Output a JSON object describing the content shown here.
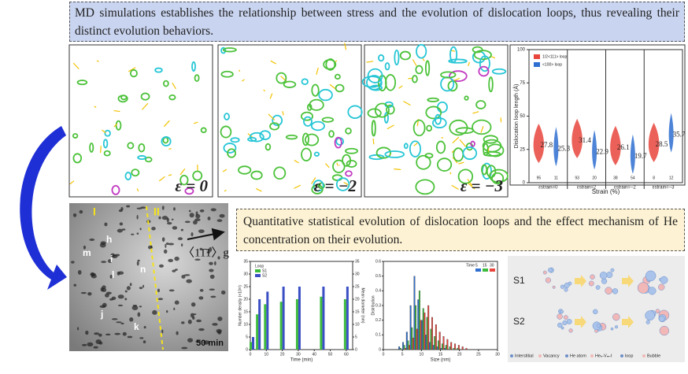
{
  "banner_top": "MD simulations establishes the relationship between stress and the evolution of dislocation loops, thus revealing their distinct evolution behaviors.",
  "md_panels": [
    {
      "label": "ε = 0"
    },
    {
      "label": "ε = −2"
    },
    {
      "label": "ε = −3"
    }
  ],
  "violin_chart": {
    "type": "violin",
    "ylabel": "Dislocation loop length (Å)",
    "xlabel": "Strain (%)",
    "categories": [
      "εstrain=0",
      "εstrain=2",
      "εstrain=−2",
      "εstrain=−3"
    ],
    "ylim": [
      0,
      100
    ],
    "yticks": [
      0,
      25,
      50,
      75,
      100
    ],
    "series": [
      {
        "name": "1/2<111> loop",
        "color": "#e8453c",
        "values": [
          27.8,
          31.4,
          26.1,
          28.5
        ],
        "counts": [
          95,
          93,
          38,
          8
        ]
      },
      {
        "name": "<100> loop",
        "color": "#2f6fd0",
        "values": [
          25.3,
          22.9,
          19.7,
          35.7
        ],
        "counts": [
          11,
          20,
          54,
          12
        ]
      }
    ]
  },
  "banner_mid": "Quantitative statistical evolution of dislocation loops and the effect mechanism of He concentration on their evolution.",
  "tem_image": {
    "regions": [
      "I",
      "II"
    ],
    "loops": [
      "h",
      "m",
      "i",
      "l",
      "n",
      "j",
      "k"
    ],
    "direction": "〈11̄1〉g",
    "caption": "50 min"
  },
  "bar_chart": {
    "type": "bar",
    "xlabel": "Time (min)",
    "ylabel": "Number density (×10²²)",
    "y2label": "Mean diameter (nm)",
    "legend_title": "Loop",
    "x": [
      1,
      5,
      10,
      20,
      30,
      45,
      60
    ],
    "xlim": [
      0,
      64
    ],
    "xticks": [
      0,
      10,
      20,
      30,
      40,
      50,
      60
    ],
    "ylim": [
      0,
      35
    ],
    "yticks": [
      0,
      5,
      10,
      15,
      20,
      25,
      30,
      35
    ],
    "y2lim": [
      0,
      35
    ],
    "y2ticks": [
      0,
      5,
      10,
      15,
      20,
      25,
      30,
      35
    ],
    "series": [
      {
        "name": "S1",
        "color": "#3dbb3d",
        "values": [
          3,
          14,
          18,
          19,
          20,
          21,
          20
        ]
      },
      {
        "name": "S2",
        "color": "#3b4fc4",
        "values": [
          5,
          20,
          23,
          25,
          25,
          25,
          25
        ]
      }
    ]
  },
  "hist_chart": {
    "type": "histogram",
    "xlabel": "Size (nm)",
    "ylabel": "Distribution",
    "legend_title": "Time",
    "bins": [
      4,
      5,
      6,
      7,
      8,
      9,
      10,
      11,
      12,
      13,
      14,
      15,
      16,
      17,
      18,
      19,
      20,
      21,
      22
    ],
    "xlim": [
      0,
      30
    ],
    "xticks": [
      0,
      5,
      10,
      15,
      20,
      25,
      30
    ],
    "ylim": [
      0,
      0.6
    ],
    "yticks": [
      0,
      0.1,
      0.2,
      0.3,
      0.4,
      0.5,
      0.6
    ],
    "series": [
      {
        "name": "5",
        "color": "#2f6fd0",
        "values": [
          0.02,
          0.05,
          0.12,
          0.3,
          0.5,
          0.34,
          0.2,
          0.1,
          0.05,
          0.03,
          0.02,
          0.01,
          0.01,
          0,
          0,
          0,
          0,
          0
        ]
      },
      {
        "name": "15",
        "color": "#3dbb3d",
        "values": [
          0.01,
          0.03,
          0.06,
          0.15,
          0.3,
          0.4,
          0.28,
          0.22,
          0.14,
          0.09,
          0.06,
          0.04,
          0.03,
          0.02,
          0.01,
          0.01,
          0,
          0
        ]
      },
      {
        "name": "30",
        "color": "#e8453c",
        "values": [
          0,
          0.01,
          0.03,
          0.08,
          0.14,
          0.2,
          0.25,
          0.3,
          0.22,
          0.17,
          0.12,
          0.09,
          0.07,
          0.05,
          0.04,
          0.03,
          0.02,
          0.01
        ]
      }
    ]
  },
  "schematic": {
    "rows": [
      "S1",
      "S2"
    ],
    "legend": [
      "Interstitial",
      "Vacancy",
      "He atom",
      "Heₙ-Vₘ-I",
      "loop",
      "Bubble"
    ]
  }
}
